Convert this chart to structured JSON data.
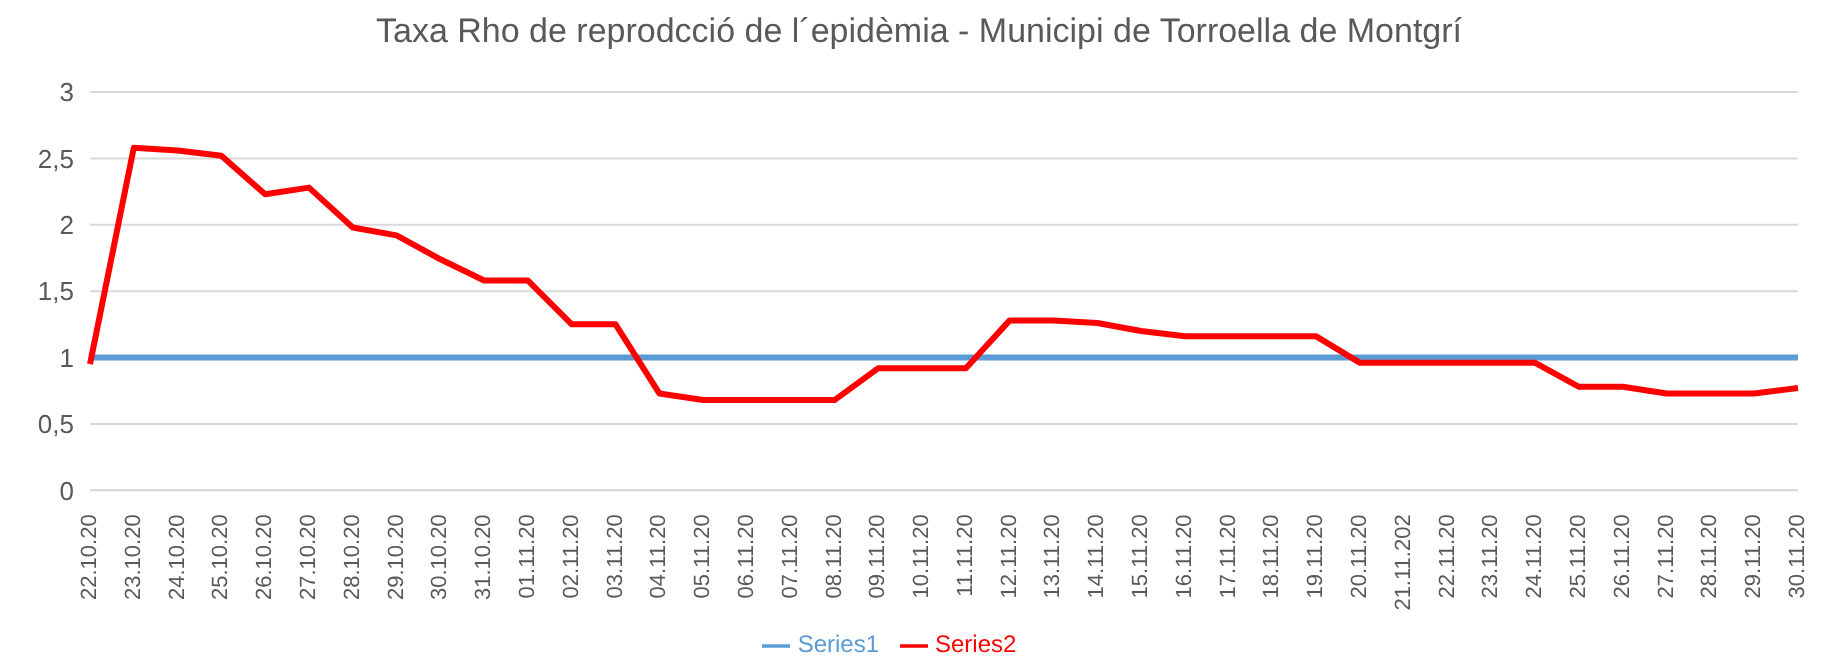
{
  "chart_data": {
    "type": "line",
    "title": "Taxa Rho de reprodcció de l´epidèmia - Municipi de Torroella de Montgrí",
    "categories": [
      "22.10.20",
      "23.10.20",
      "24.10.20",
      "25.10.20",
      "26.10.20",
      "27.10.20",
      "28.10.20",
      "29.10.20",
      "30.10.20",
      "31.10.20",
      "01.11.20",
      "02.11.20",
      "03.11.20",
      "04.11.20",
      "05.11.20",
      "06.11.20",
      "07.11.20",
      "08.11.20",
      "09.11.20",
      "10.11.20",
      "11.11.20",
      "12.11.20",
      "13.11.20",
      "14.11.20",
      "15.11.20",
      "16.11.20",
      "17.11.20",
      "18.11.20",
      "19.11.20",
      "20.11.20",
      "21.11.202",
      "22.11.20",
      "23.11.20",
      "24.11.20",
      "25.11.20",
      "26.11.20",
      "27.11.20",
      "28.11.20",
      "29.11.20",
      "30.11.20"
    ],
    "series": [
      {
        "name": "Series1",
        "color": "#5b9bd5",
        "values": [
          1,
          1,
          1,
          1,
          1,
          1,
          1,
          1,
          1,
          1,
          1,
          1,
          1,
          1,
          1,
          1,
          1,
          1,
          1,
          1,
          1,
          1,
          1,
          1,
          1,
          1,
          1,
          1,
          1,
          1,
          1,
          1,
          1,
          1,
          1,
          1,
          1,
          1,
          1,
          1
        ]
      },
      {
        "name": "Series2",
        "color": "#ff0000",
        "values": [
          0.95,
          2.58,
          2.56,
          2.52,
          2.23,
          2.28,
          1.98,
          1.92,
          1.74,
          1.58,
          1.58,
          1.25,
          1.25,
          0.73,
          0.68,
          0.68,
          0.68,
          0.68,
          0.92,
          0.92,
          0.92,
          1.28,
          1.28,
          1.26,
          1.2,
          1.16,
          1.16,
          1.16,
          1.16,
          0.96,
          0.96,
          0.96,
          0.96,
          0.96,
          0.78,
          0.78,
          0.73,
          0.73,
          0.73,
          0.77
        ]
      }
    ],
    "ylim": [
      0,
      3
    ],
    "yticks": [
      0,
      {
        "value": 0.5,
        "label": "0,5"
      },
      1,
      {
        "value": 1.5,
        "label": "1,5"
      },
      2,
      {
        "value": 2.5,
        "label": "2,5"
      },
      3
    ],
    "grid": "y",
    "legend": "bottom",
    "marker": "none",
    "line_style": "solid"
  }
}
